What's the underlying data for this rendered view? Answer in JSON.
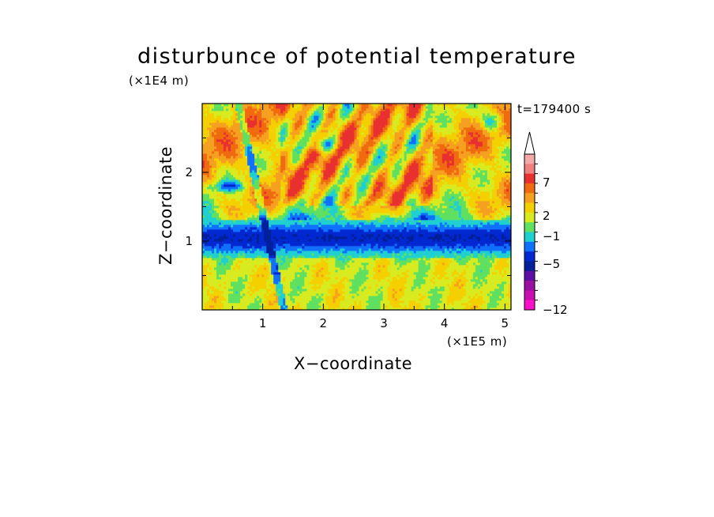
{
  "chart_data": {
    "type": "heatmap",
    "title": "disturbunce of potential temperature",
    "xlabel": "X−coordinate",
    "ylabel": "Z−coordinate",
    "x_unit": "(×1E5 m)",
    "y_unit": "(×1E4 m)",
    "time_label": "t=179400 s",
    "xlim": [
      0,
      5.1
    ],
    "ylim": [
      0,
      3.0
    ],
    "x_ticks": [
      "1",
      "2",
      "3",
      "4",
      "5"
    ],
    "y_ticks": [
      "1",
      "2"
    ],
    "colorbar": {
      "labels": [
        "7",
        "2",
        "−1",
        "−5",
        "−12"
      ],
      "colors": [
        "#f4a9a9",
        "#f07f7f",
        "#e83030",
        "#f06a10",
        "#f5a020",
        "#f5d000",
        "#d8ea20",
        "#60e060",
        "#20d0d0",
        "#1070ff",
        "#0028d0",
        "#00209a",
        "#5c0fa0",
        "#9a10a0",
        "#c810b0",
        "#ff10c8"
      ],
      "extend_top": true
    },
    "bands": [
      {
        "z": [
          0.0,
          0.25
        ],
        "pattern": "mixed-green-cyan-yellow"
      },
      {
        "z": [
          0.25,
          0.75
        ],
        "pattern": "yellow-green-cyan"
      },
      {
        "z": [
          0.75,
          1.35
        ],
        "pattern": "blue-layer"
      },
      {
        "z": [
          1.35,
          2.0
        ],
        "pattern": "yellow-orange-waves"
      },
      {
        "z": [
          2.0,
          3.0
        ],
        "pattern": "orange-green-mixed"
      }
    ],
    "grid": false
  }
}
